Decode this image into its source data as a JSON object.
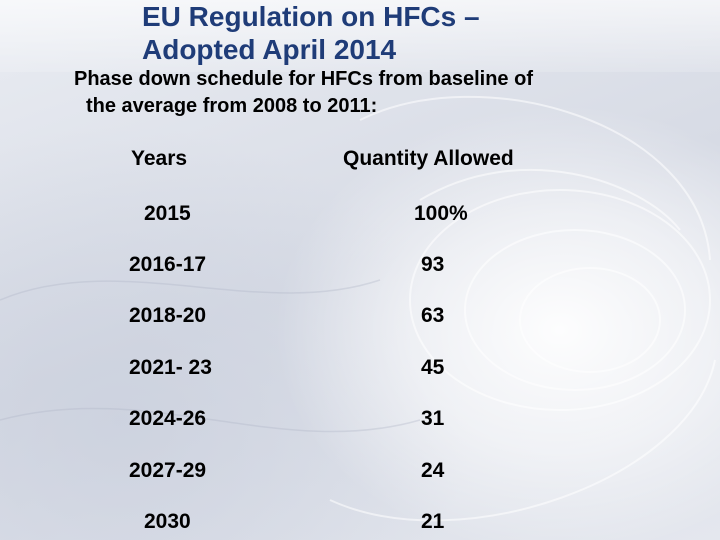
{
  "slide": {
    "title_line1": "EU Regulation on HFCs –",
    "title_line2": "Adopted April 2014",
    "subtitle_line1": "Phase down schedule for HFCs from baseline of",
    "subtitle_line2": "the average from 2008 to 2011:",
    "colors": {
      "title": "#1f3c78",
      "text": "#000000"
    }
  },
  "table": {
    "headers": {
      "years": "Years",
      "quantity": "Quantity Allowed"
    },
    "rows": [
      {
        "years": "2015",
        "quantity": "100%"
      },
      {
        "years": "2016-17",
        "quantity": "93"
      },
      {
        "years": "2018-20",
        "quantity": "63"
      },
      {
        "years": "2021- 23",
        "quantity": "45"
      },
      {
        "years": "2024-26",
        "quantity": "31"
      },
      {
        "years": "2027-29",
        "quantity": "24"
      },
      {
        "years": "2030",
        "quantity": "21"
      }
    ]
  }
}
